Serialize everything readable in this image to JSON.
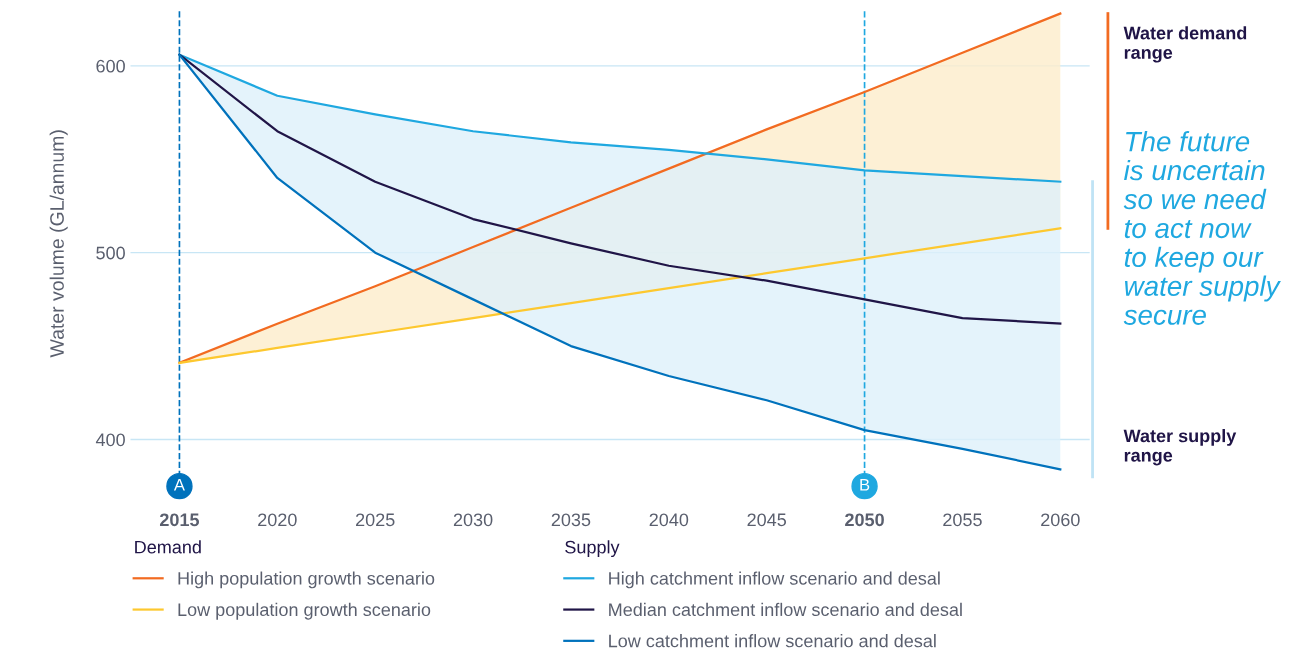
{
  "chart_data": {
    "type": "line",
    "ylabel": "Water volume (GL/annum)",
    "x": [
      2015,
      2020,
      2025,
      2030,
      2035,
      2040,
      2045,
      2050,
      2055,
      2060
    ],
    "xlim": [
      2012.5,
      2061.5
    ],
    "xticks": [
      2015,
      2020,
      2025,
      2030,
      2035,
      2040,
      2045,
      2050,
      2055,
      2060
    ],
    "ylim": [
      380,
      630
    ],
    "yticks": [
      400,
      500,
      600
    ],
    "grid": "y",
    "legend": "bottom",
    "marker": "none",
    "line_style": "solid",
    "series": [
      {
        "name": "High population growth scenario",
        "color": "#f26b21",
        "values": [
          441,
          462,
          482,
          503,
          524,
          545,
          566,
          586,
          607,
          628
        ],
        "lower": [
          441,
          449,
          457,
          465,
          473,
          481,
          489,
          497,
          505,
          513
        ],
        "upper": [
          441,
          462,
          482,
          503,
          524,
          545,
          566,
          586,
          607,
          628
        ]
      },
      {
        "name": "Low population growth scenario",
        "color": "#fdc82f",
        "values": [
          441,
          449,
          457,
          465,
          473,
          481,
          489,
          497,
          505,
          513
        ]
      },
      {
        "name": "High catchment inflow scenario and desal",
        "color": "#1fa8e0",
        "values": [
          606,
          584,
          574,
          565,
          559,
          555,
          550,
          544,
          541,
          538
        ]
      },
      {
        "name": "Median catchment inflow scenario and desal",
        "color": "#201547",
        "values": [
          606,
          565,
          538,
          518,
          505,
          493,
          485,
          475,
          465,
          462
        ],
        "lower": [
          606,
          540,
          500,
          475,
          450,
          434,
          421,
          405,
          395,
          384
        ],
        "upper": [
          606,
          584,
          574,
          565,
          559,
          555,
          550,
          544,
          541,
          538
        ]
      },
      {
        "name": "Low catchment inflow scenario and desal",
        "color": "#0072bc",
        "values": [
          606,
          540,
          500,
          475,
          450,
          434,
          421,
          405,
          395,
          384
        ]
      }
    ],
    "ref_lines": [
      {
        "axis": "x",
        "value": 2015,
        "label": "A",
        "color": "#0072bc",
        "line_style": "dashed"
      },
      {
        "axis": "x",
        "value": 2050,
        "label": "B",
        "color": "#1fa8e0",
        "line_style": "dashed"
      }
    ],
    "annotations": [
      "Demand",
      "Supply",
      "Water demand\nrange",
      "The future\nis uncertain\nso we need\nto act now\nto keep our\nwater supply\nsecure",
      "Water supply\nrange"
    ]
  }
}
